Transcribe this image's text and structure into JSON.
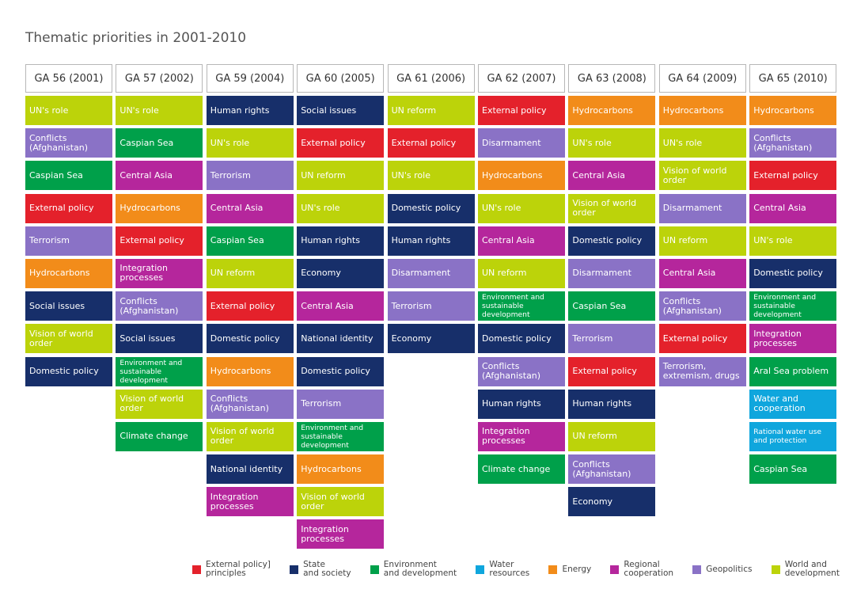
{
  "chart_data": {
    "type": "table",
    "title": "Thematic priorities in 2001-2010",
    "categories": {
      "external": {
        "label": "External policy]\nprinciples",
        "color": "#e4212b"
      },
      "state": {
        "label": "State\nand society",
        "color": "#172f6a"
      },
      "environment": {
        "label": "Environment\nand development",
        "color": "#00a04a"
      },
      "water": {
        "label": "Water\nresources",
        "color": "#0fa6dd"
      },
      "energy": {
        "label": "Energy",
        "color": "#f28c1a"
      },
      "regional": {
        "label": "Regional\ncooperation",
        "color": "#b5269c"
      },
      "geopolitics": {
        "label": "Geopolitics",
        "color": "#8a72c6"
      },
      "world": {
        "label": "World and\ndevelopment",
        "color": "#bcd30a"
      }
    },
    "legend_order": [
      "external",
      "state",
      "environment",
      "water",
      "energy",
      "regional",
      "geopolitics",
      "world"
    ],
    "columns": [
      {
        "header": "GA 56 (2001)",
        "items": [
          {
            "label": "UN's role",
            "category": "world"
          },
          {
            "label": "Conflicts (Afghanistan)",
            "category": "geopolitics"
          },
          {
            "label": "Caspian Sea",
            "category": "environment"
          },
          {
            "label": "External policy",
            "category": "external"
          },
          {
            "label": "Terrorism",
            "category": "geopolitics"
          },
          {
            "label": "Hydrocarbons",
            "category": "energy"
          },
          {
            "label": "Social issues",
            "category": "state"
          },
          {
            "label": "Vision of world order",
            "category": "world"
          },
          {
            "label": "Domestic policy",
            "category": "state"
          }
        ]
      },
      {
        "header": "GA 57 (2002)",
        "items": [
          {
            "label": "UN's role",
            "category": "world"
          },
          {
            "label": "Caspian Sea",
            "category": "environment"
          },
          {
            "label": "Central Asia",
            "category": "regional"
          },
          {
            "label": "Hydrocarbons",
            "category": "energy"
          },
          {
            "label": "External policy",
            "category": "external"
          },
          {
            "label": "Integration processes",
            "category": "regional"
          },
          {
            "label": "Conflicts (Afghanistan)",
            "category": "geopolitics"
          },
          {
            "label": "Social issues",
            "category": "state"
          },
          {
            "label": "Environment and sustainable development",
            "category": "environment"
          },
          {
            "label": "Vision of world order",
            "category": "world"
          },
          {
            "label": "Climate change",
            "category": "environment"
          }
        ]
      },
      {
        "header": "GA 59 (2004)",
        "items": [
          {
            "label": "Human rights",
            "category": "state"
          },
          {
            "label": "UN's role",
            "category": "world"
          },
          {
            "label": "Terrorism",
            "category": "geopolitics"
          },
          {
            "label": "Central Asia",
            "category": "regional"
          },
          {
            "label": "Caspian Sea",
            "category": "environment"
          },
          {
            "label": "UN reform",
            "category": "world"
          },
          {
            "label": "External policy",
            "category": "external"
          },
          {
            "label": "Domestic policy",
            "category": "state"
          },
          {
            "label": "Hydrocarbons",
            "category": "energy"
          },
          {
            "label": "Conflicts (Afghanistan)",
            "category": "geopolitics"
          },
          {
            "label": "Vision of world order",
            "category": "world"
          },
          {
            "label": "National identity",
            "category": "state"
          },
          {
            "label": "Integration processes",
            "category": "regional"
          }
        ]
      },
      {
        "header": "GA 60 (2005)",
        "items": [
          {
            "label": "Social issues",
            "category": "state"
          },
          {
            "label": "External policy",
            "category": "external"
          },
          {
            "label": "UN reform",
            "category": "world"
          },
          {
            "label": "UN's role",
            "category": "world"
          },
          {
            "label": "Human rights",
            "category": "state"
          },
          {
            "label": "Economy",
            "category": "state"
          },
          {
            "label": "Central Asia",
            "category": "regional"
          },
          {
            "label": "National identity",
            "category": "state"
          },
          {
            "label": "Domestic policy",
            "category": "state"
          },
          {
            "label": "Terrorism",
            "category": "geopolitics"
          },
          {
            "label": "Environment and sustainable development",
            "category": "environment"
          },
          {
            "label": "Hydrocarbons",
            "category": "energy"
          },
          {
            "label": "Vision of world order",
            "category": "world"
          },
          {
            "label": "Integration processes",
            "category": "regional"
          }
        ]
      },
      {
        "header": "GA 61 (2006)",
        "items": [
          {
            "label": "UN reform",
            "category": "world"
          },
          {
            "label": "External policy",
            "category": "external"
          },
          {
            "label": "UN's role",
            "category": "world"
          },
          {
            "label": "Domestic policy",
            "category": "state"
          },
          {
            "label": "Human rights",
            "category": "state"
          },
          {
            "label": "Disarmament",
            "category": "geopolitics"
          },
          {
            "label": "Terrorism",
            "category": "geopolitics"
          },
          {
            "label": "Economy",
            "category": "state"
          }
        ]
      },
      {
        "header": "GA 62 (2007)",
        "items": [
          {
            "label": "External policy",
            "category": "external"
          },
          {
            "label": "Disarmament",
            "category": "geopolitics"
          },
          {
            "label": "Hydrocarbons",
            "category": "energy"
          },
          {
            "label": "UN's role",
            "category": "world"
          },
          {
            "label": "Central Asia",
            "category": "regional"
          },
          {
            "label": "UN reform",
            "category": "world"
          },
          {
            "label": "Environment and sustainable development",
            "category": "environment"
          },
          {
            "label": "Domestic policy",
            "category": "state"
          },
          {
            "label": "Conflicts (Afghanistan)",
            "category": "geopolitics"
          },
          {
            "label": "Human rights",
            "category": "state"
          },
          {
            "label": "Integration processes",
            "category": "regional"
          },
          {
            "label": "Climate change",
            "category": "environment"
          }
        ]
      },
      {
        "header": "GA 63 (2008)",
        "items": [
          {
            "label": "Hydrocarbons",
            "category": "energy"
          },
          {
            "label": "UN's role",
            "category": "world"
          },
          {
            "label": "Central Asia",
            "category": "regional"
          },
          {
            "label": "Vision of world order",
            "category": "world"
          },
          {
            "label": "Domestic policy",
            "category": "state"
          },
          {
            "label": "Disarmament",
            "category": "geopolitics"
          },
          {
            "label": "Caspian Sea",
            "category": "environment"
          },
          {
            "label": "Terrorism",
            "category": "geopolitics"
          },
          {
            "label": "External policy",
            "category": "external"
          },
          {
            "label": "Human rights",
            "category": "state"
          },
          {
            "label": "UN reform",
            "category": "world"
          },
          {
            "label": "Conflicts (Afghanistan)",
            "category": "geopolitics"
          },
          {
            "label": "Economy",
            "category": "state"
          }
        ]
      },
      {
        "header": "GA 64 (2009)",
        "items": [
          {
            "label": "Hydrocarbons",
            "category": "energy"
          },
          {
            "label": "UN's role",
            "category": "world"
          },
          {
            "label": "Vision of world order",
            "category": "world"
          },
          {
            "label": "Disarmament",
            "category": "geopolitics"
          },
          {
            "label": "UN reform",
            "category": "world"
          },
          {
            "label": "Central Asia",
            "category": "regional"
          },
          {
            "label": "Conflicts (Afghanistan)",
            "category": "geopolitics"
          },
          {
            "label": "External policy",
            "category": "external"
          },
          {
            "label": "Terrorism, extremism, drugs",
            "category": "geopolitics"
          }
        ]
      },
      {
        "header": "GA 65 (2010)",
        "items": [
          {
            "label": "Hydrocarbons",
            "category": "energy"
          },
          {
            "label": "Conflicts (Afghanistan)",
            "category": "geopolitics"
          },
          {
            "label": "External policy",
            "category": "external"
          },
          {
            "label": "Central Asia",
            "category": "regional"
          },
          {
            "label": "UN's role",
            "category": "world"
          },
          {
            "label": "Domestic policy",
            "category": "state"
          },
          {
            "label": "Environment and sustainable development",
            "category": "environment"
          },
          {
            "label": "Integration processes",
            "category": "regional"
          },
          {
            "label": "Aral Sea problem",
            "category": "environment"
          },
          {
            "label": "Water and cooperation",
            "category": "water"
          },
          {
            "label": "Rational water use and protection",
            "category": "water"
          },
          {
            "label": "Caspian Sea",
            "category": "environment"
          }
        ]
      }
    ]
  }
}
